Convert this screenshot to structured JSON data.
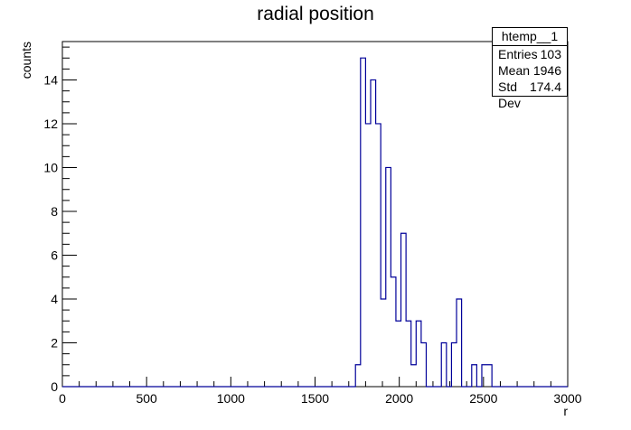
{
  "chart_data": {
    "type": "histogram",
    "title": "radial position",
    "xlabel": "r",
    "ylabel": "counts",
    "xlim": [
      0,
      3000
    ],
    "ylim": [
      0,
      15.75
    ],
    "bin_width": 30,
    "x_ticks": [
      0,
      500,
      1000,
      1500,
      2000,
      2500,
      3000
    ],
    "y_ticks": [
      0,
      2,
      4,
      6,
      8,
      10,
      12,
      14
    ],
    "line_color": "#000099",
    "bins": [
      {
        "x": 1740,
        "count": 1
      },
      {
        "x": 1770,
        "count": 15
      },
      {
        "x": 1800,
        "count": 12
      },
      {
        "x": 1830,
        "count": 14
      },
      {
        "x": 1860,
        "count": 12
      },
      {
        "x": 1890,
        "count": 4
      },
      {
        "x": 1920,
        "count": 10
      },
      {
        "x": 1950,
        "count": 5
      },
      {
        "x": 1980,
        "count": 3
      },
      {
        "x": 2010,
        "count": 7
      },
      {
        "x": 2040,
        "count": 3
      },
      {
        "x": 2070,
        "count": 1
      },
      {
        "x": 2100,
        "count": 3
      },
      {
        "x": 2130,
        "count": 2
      },
      {
        "x": 2250,
        "count": 2
      },
      {
        "x": 2310,
        "count": 2
      },
      {
        "x": 2340,
        "count": 4
      },
      {
        "x": 2430,
        "count": 1
      },
      {
        "x": 2490,
        "count": 1
      },
      {
        "x": 2520,
        "count": 1
      }
    ],
    "stats": {
      "name": "htemp__1",
      "entries_label": "Entries",
      "entries": "103",
      "mean_label": "Mean",
      "mean": "1946",
      "std_label": "Std Dev",
      "std": "174.4"
    }
  }
}
